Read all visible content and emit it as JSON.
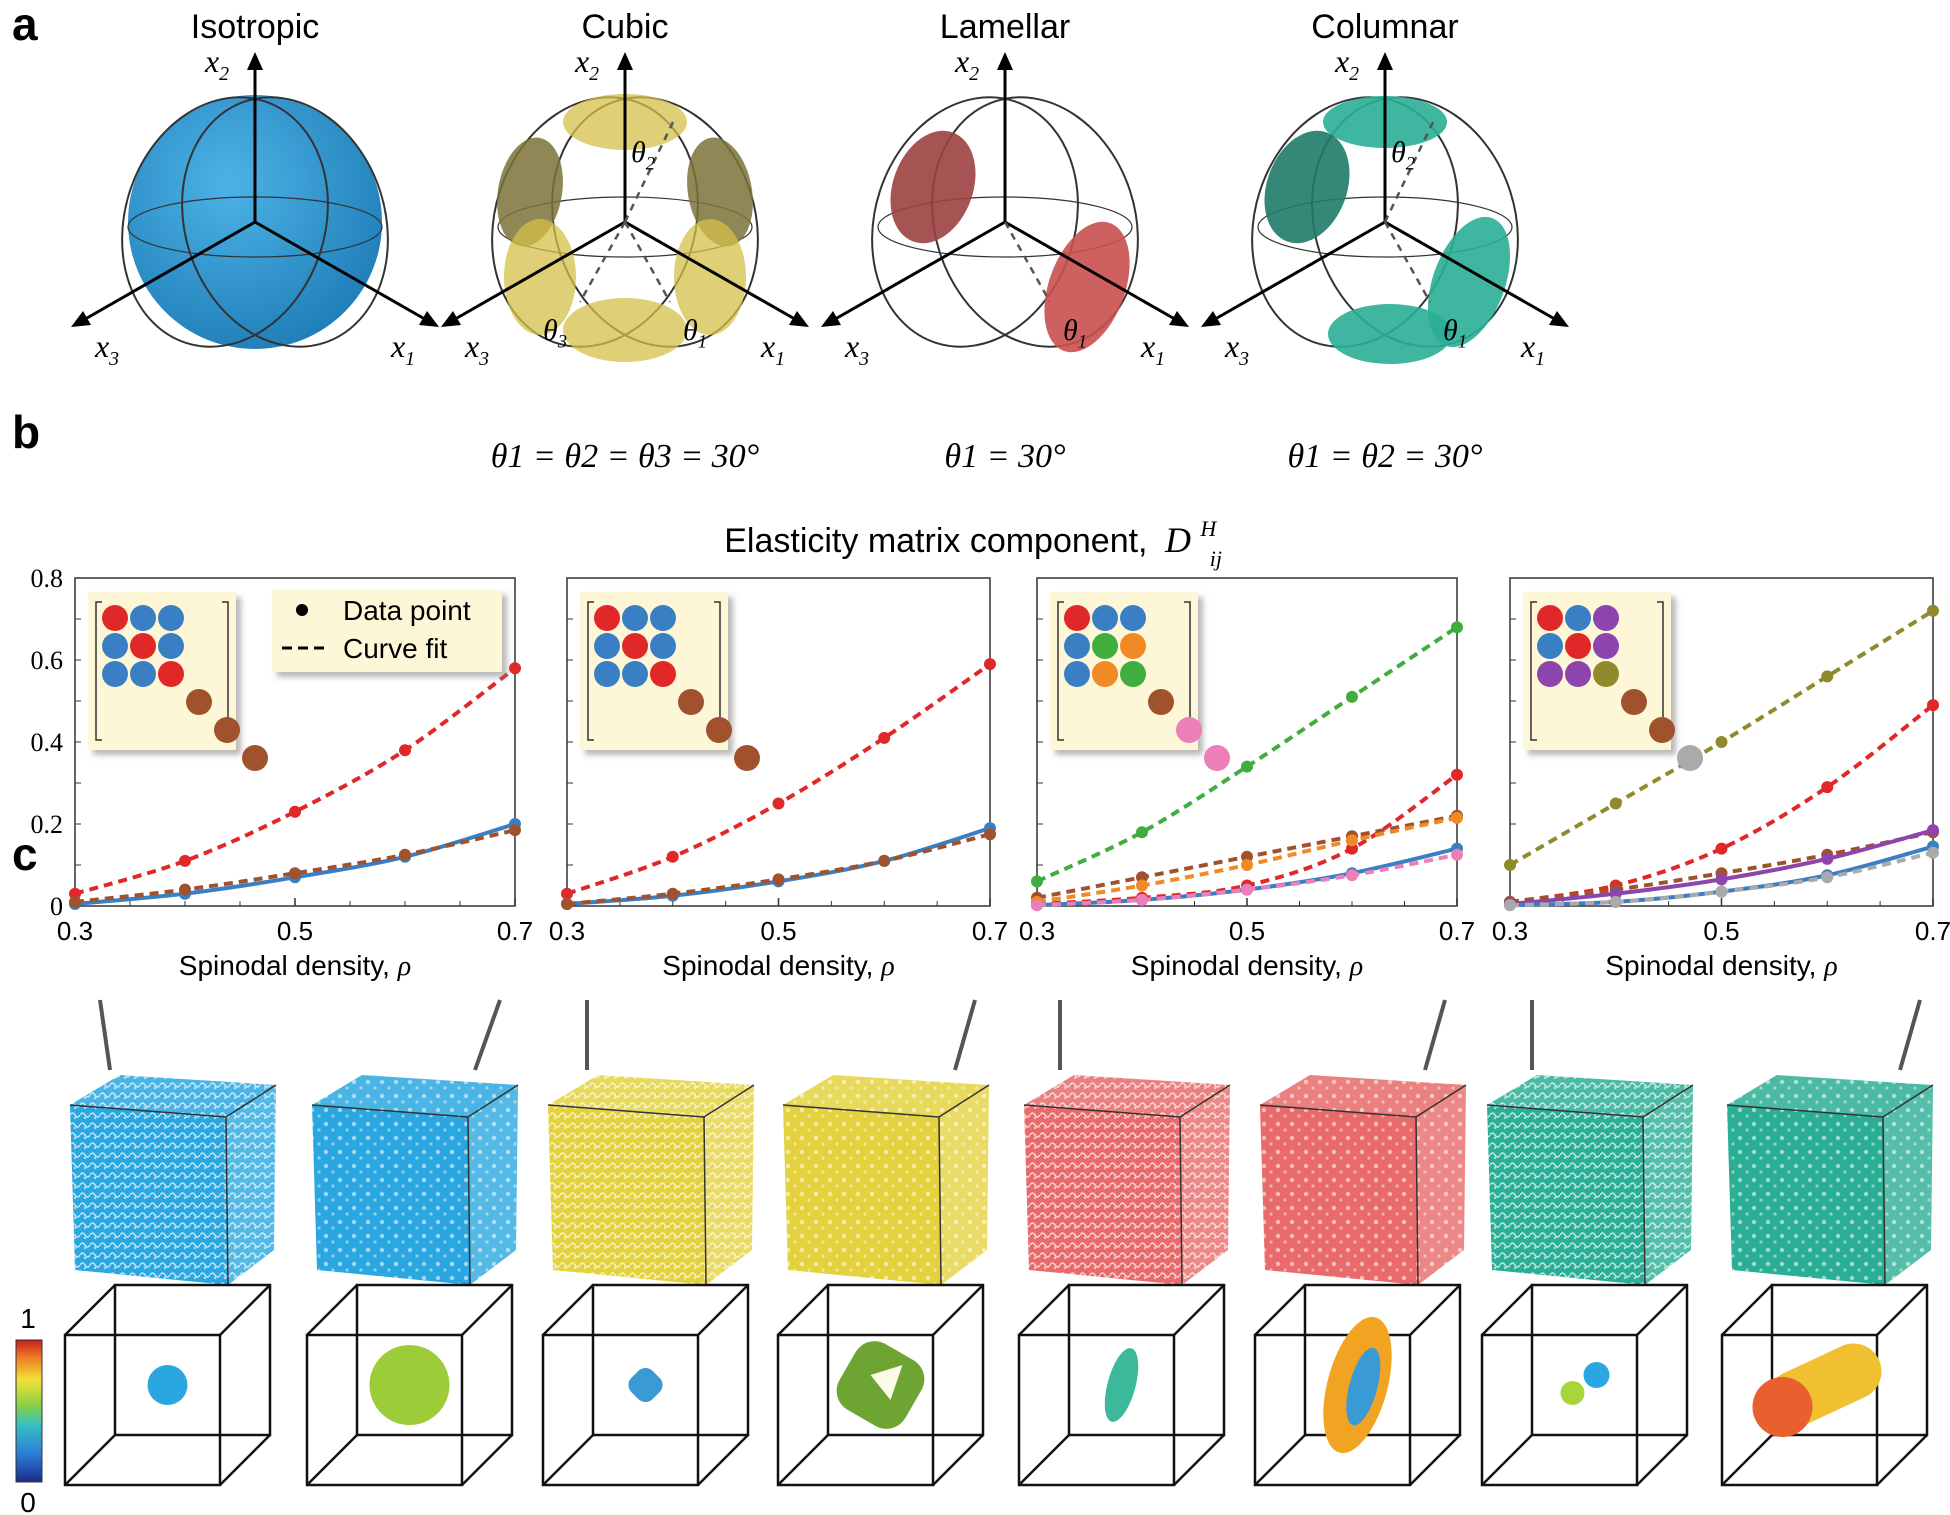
{
  "panel_letters": {
    "a": "a",
    "b": "b",
    "c": "c"
  },
  "symmetries": [
    {
      "title": "Isotropic",
      "color": "#2b8fcc",
      "angles": ""
    },
    {
      "title": "Cubic",
      "color": "#d4c04a",
      "angles": "θ1 = θ2 = θ3 = 30°"
    },
    {
      "title": "Lamellar",
      "color": "#c9504f",
      "angles": "θ1 = 30°"
    },
    {
      "title": "Columnar",
      "color": "#2aae95",
      "angles": "θ1 = θ2 = 30°"
    }
  ],
  "axis_labels": {
    "x1": "x1",
    "x2": "x2",
    "x3": "x3"
  },
  "angle_labels": {
    "t1": "θ1",
    "t2": "θ2",
    "t3": "θ3"
  },
  "section_b_title": "Elasticity matrix component,",
  "section_b_symbol": "D",
  "section_b_sup": "H",
  "section_b_sub": "ij",
  "legend": {
    "data_point": "Data point",
    "curve_fit": "Curve fit"
  },
  "colorbar": {
    "max": "1",
    "min": "0"
  },
  "chart_data": [
    {
      "type": "line",
      "xlabel": "Spinodal density, ρ",
      "ylabel": "",
      "xlim": [
        0.3,
        0.7
      ],
      "ylim": [
        0,
        0.8
      ],
      "x_ticks": [
        "0.3",
        "0.5",
        "0.7"
      ],
      "y_ticks": [
        "0",
        "0.2",
        "0.4",
        "0.6",
        "0.8"
      ],
      "x": [
        0.3,
        0.4,
        0.5,
        0.6,
        0.7
      ],
      "series": [
        {
          "color": "#e02828",
          "style": "dashed",
          "values": [
            0.03,
            0.11,
            0.23,
            0.38,
            0.58
          ]
        },
        {
          "color": "#3a7fc4",
          "style": "solid",
          "values": [
            0.005,
            0.03,
            0.07,
            0.12,
            0.2
          ]
        },
        {
          "color": "#a0522d",
          "style": "dashed",
          "values": [
            0.01,
            0.04,
            0.08,
            0.125,
            0.185
          ]
        }
      ]
    },
    {
      "type": "line",
      "xlabel": "Spinodal density, ρ",
      "xlim": [
        0.3,
        0.7
      ],
      "ylim": [
        0,
        0.8
      ],
      "x_ticks": [
        "0.3",
        "0.5",
        "0.7"
      ],
      "x": [
        0.3,
        0.4,
        0.5,
        0.6,
        0.7
      ],
      "series": [
        {
          "color": "#e02828",
          "style": "dashed",
          "values": [
            0.03,
            0.12,
            0.25,
            0.41,
            0.59
          ]
        },
        {
          "color": "#3a7fc4",
          "style": "solid",
          "values": [
            0.005,
            0.025,
            0.06,
            0.11,
            0.19
          ]
        },
        {
          "color": "#a0522d",
          "style": "dashed",
          "values": [
            0.005,
            0.03,
            0.065,
            0.11,
            0.175
          ]
        }
      ]
    },
    {
      "type": "line",
      "xlabel": "Spinodal density, ρ",
      "xlim": [
        0.3,
        0.7
      ],
      "ylim": [
        0,
        0.8
      ],
      "x_ticks": [
        "0.3",
        "0.5",
        "0.7"
      ],
      "x": [
        0.3,
        0.4,
        0.5,
        0.6,
        0.7
      ],
      "series": [
        {
          "color": "#3fae3f",
          "style": "dashed",
          "values": [
            0.06,
            0.18,
            0.34,
            0.51,
            0.68
          ]
        },
        {
          "color": "#e02828",
          "style": "dashed",
          "values": [
            0.005,
            0.02,
            0.05,
            0.14,
            0.32
          ]
        },
        {
          "color": "#a0522d",
          "style": "dashed",
          "values": [
            0.02,
            0.07,
            0.12,
            0.17,
            0.22
          ]
        },
        {
          "color": "#f08a24",
          "style": "dashed",
          "values": [
            0.01,
            0.05,
            0.1,
            0.16,
            0.215
          ]
        },
        {
          "color": "#3a7fc4",
          "style": "solid",
          "values": [
            0.002,
            0.015,
            0.04,
            0.08,
            0.14
          ]
        },
        {
          "color": "#ec7fb8",
          "style": "dashed",
          "values": [
            0.002,
            0.015,
            0.04,
            0.075,
            0.125
          ]
        }
      ]
    },
    {
      "type": "line",
      "xlabel": "Spinodal density, ρ",
      "xlim": [
        0.3,
        0.7
      ],
      "ylim": [
        0,
        0.8
      ],
      "x_ticks": [
        "0.3",
        "0.5",
        "0.7"
      ],
      "x": [
        0.3,
        0.4,
        0.5,
        0.6,
        0.7
      ],
      "series": [
        {
          "color": "#8f8a2c",
          "style": "dashed",
          "values": [
            0.1,
            0.25,
            0.4,
            0.56,
            0.72
          ]
        },
        {
          "color": "#e02828",
          "style": "dashed",
          "values": [
            0.01,
            0.05,
            0.14,
            0.29,
            0.49
          ]
        },
        {
          "color": "#a0522d",
          "style": "dashed",
          "values": [
            0.01,
            0.04,
            0.08,
            0.125,
            0.18
          ]
        },
        {
          "color": "#8e44ad",
          "style": "solid",
          "values": [
            0.005,
            0.03,
            0.065,
            0.115,
            0.185
          ]
        },
        {
          "color": "#3a7fc4",
          "style": "solid",
          "values": [
            0.002,
            0.01,
            0.035,
            0.075,
            0.145
          ]
        },
        {
          "color": "#aaaaaa",
          "style": "dashed",
          "values": [
            0.002,
            0.01,
            0.035,
            0.07,
            0.13
          ]
        }
      ]
    }
  ],
  "matrix_insets": [
    {
      "colors": [
        [
          "#e02828",
          "#3a7fc4",
          "#3a7fc4"
        ],
        [
          "#3a7fc4",
          "#e02828",
          "#3a7fc4"
        ],
        [
          "#3a7fc4",
          "#3a7fc4",
          "#e02828"
        ]
      ],
      "diag": [
        "#a0522d",
        "#a0522d",
        "#a0522d"
      ]
    },
    {
      "colors": [
        [
          "#e02828",
          "#3a7fc4",
          "#3a7fc4"
        ],
        [
          "#3a7fc4",
          "#e02828",
          "#3a7fc4"
        ],
        [
          "#3a7fc4",
          "#3a7fc4",
          "#e02828"
        ]
      ],
      "diag": [
        "#a0522d",
        "#a0522d",
        "#a0522d"
      ]
    },
    {
      "colors": [
        [
          "#e02828",
          "#3a7fc4",
          "#3a7fc4"
        ],
        [
          "#3a7fc4",
          "#3fae3f",
          "#f08a24"
        ],
        [
          "#3a7fc4",
          "#f08a24",
          "#3fae3f"
        ]
      ],
      "diag": [
        "#a0522d",
        "#ec7fb8",
        "#ec7fb8"
      ]
    },
    {
      "colors": [
        [
          "#e02828",
          "#3a7fc4",
          "#8e44ad"
        ],
        [
          "#3a7fc4",
          "#e02828",
          "#8e44ad"
        ],
        [
          "#8e44ad",
          "#8e44ad",
          "#8f8a2c"
        ]
      ],
      "diag": [
        "#a0522d",
        "#a0522d",
        "#aaaaaa"
      ]
    }
  ],
  "cubes": [
    {
      "color": "#2aa7e0",
      "shape": "sphere-small",
      "blob": "#2aa7e0"
    },
    {
      "color": "#2aa7e0",
      "shape": "sphere-big",
      "blob": "#9ccc3a"
    },
    {
      "color": "#e3d23e",
      "shape": "cube-small",
      "blob": "#3a9ad6"
    },
    {
      "color": "#e3d23e",
      "shape": "cube-big",
      "blob": "#6da432"
    },
    {
      "color": "#e86a6a",
      "shape": "ellipse-small",
      "blob": "#3cb89a"
    },
    {
      "color": "#e86a6a",
      "shape": "ellipse-big",
      "blob": "#f0a422"
    },
    {
      "color": "#2aae95",
      "shape": "column-small",
      "blob": "#2aa7e0"
    },
    {
      "color": "#2aae95",
      "shape": "column-big",
      "blob": "#e86030"
    }
  ]
}
